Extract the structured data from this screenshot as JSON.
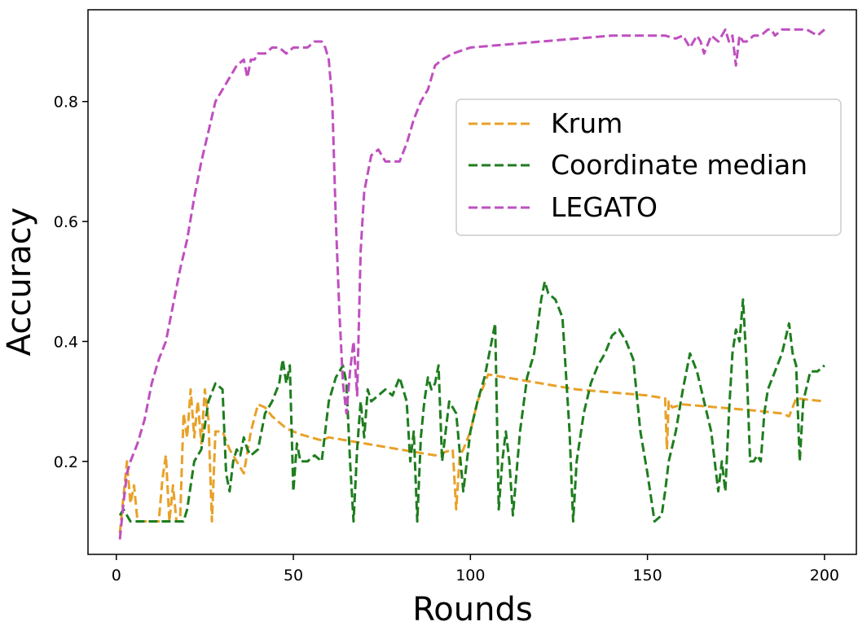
{
  "chart_data": {
    "type": "line",
    "xlabel": "Rounds",
    "ylabel": "Accuracy",
    "xlim": [
      -8,
      209
    ],
    "ylim": [
      0.045,
      0.953
    ],
    "xticks": [
      0,
      50,
      100,
      150,
      200
    ],
    "xtick_labels": [
      "0",
      "50",
      "100",
      "150",
      "200"
    ],
    "yticks": [
      0.2,
      0.4,
      0.6,
      0.8
    ],
    "ytick_labels": [
      "0.2",
      "0.4",
      "0.6",
      "0.8"
    ],
    "grid": false,
    "legend_position": "upper-right",
    "series": [
      {
        "name": "Krum",
        "color": "#e8a128",
        "style": "dashed",
        "x": [
          1,
          3,
          4,
          5,
          6,
          8,
          10,
          12,
          13,
          14,
          15,
          16,
          17,
          18,
          19,
          20,
          21,
          22,
          23,
          24,
          25,
          26,
          27,
          28,
          30,
          32,
          34,
          36,
          38,
          40,
          42,
          44,
          46,
          48,
          50,
          52,
          55,
          58,
          60,
          65,
          70,
          75,
          80,
          85,
          90,
          95,
          96,
          97,
          98,
          100,
          102,
          105,
          110,
          120,
          130,
          140,
          150,
          155,
          155.5,
          156,
          157,
          160,
          170,
          180,
          188,
          190,
          192,
          200
        ],
        "y": [
          0.08,
          0.2,
          0.13,
          0.16,
          0.1,
          0.1,
          0.1,
          0.1,
          0.17,
          0.21,
          0.1,
          0.16,
          0.1,
          0.1,
          0.28,
          0.24,
          0.32,
          0.24,
          0.3,
          0.23,
          0.32,
          0.27,
          0.1,
          0.25,
          0.25,
          0.22,
          0.2,
          0.18,
          0.25,
          0.295,
          0.29,
          0.275,
          0.265,
          0.255,
          0.25,
          0.245,
          0.24,
          0.235,
          0.24,
          0.235,
          0.23,
          0.225,
          0.22,
          0.215,
          0.21,
          0.22,
          0.12,
          0.21,
          0.22,
          0.25,
          0.3,
          0.345,
          0.34,
          0.33,
          0.32,
          0.315,
          0.31,
          0.305,
          0.22,
          0.3,
          0.29,
          0.295,
          0.29,
          0.285,
          0.28,
          0.275,
          0.305,
          0.3
        ]
      },
      {
        "name": "Coordinate median",
        "color": "#1e7d1e",
        "style": "dashed",
        "x": [
          1,
          2,
          4,
          6,
          8,
          10,
          12,
          14,
          16,
          18,
          19,
          20,
          22,
          24,
          26,
          28,
          30,
          31,
          32,
          33,
          34,
          35,
          36,
          37,
          38,
          40,
          42,
          44,
          46,
          47,
          48,
          49,
          50,
          51,
          52,
          53,
          54,
          56,
          58,
          60,
          62,
          64,
          65,
          66,
          67,
          68,
          69,
          70,
          71,
          72,
          74,
          76,
          78,
          80,
          81,
          82,
          83,
          84,
          85,
          86,
          87,
          88,
          89,
          90,
          91,
          92,
          94,
          96,
          98,
          100,
          102,
          104,
          106,
          107,
          108,
          109,
          110,
          111,
          112,
          114,
          116,
          118,
          120,
          121,
          122,
          124,
          126,
          128,
          129,
          130,
          132,
          134,
          136,
          138,
          140,
          142,
          144,
          146,
          148,
          150,
          152,
          154,
          155,
          156,
          158,
          160,
          162,
          164,
          166,
          168,
          170,
          171,
          172,
          173,
          174,
          175,
          176,
          177,
          178,
          179,
          180,
          181,
          182,
          183,
          184,
          186,
          188,
          190,
          191,
          192,
          193,
          194,
          196,
          198,
          200
        ],
        "y": [
          0.11,
          0.12,
          0.1,
          0.1,
          0.1,
          0.1,
          0.1,
          0.1,
          0.1,
          0.1,
          0.1,
          0.12,
          0.2,
          0.22,
          0.3,
          0.33,
          0.32,
          0.18,
          0.15,
          0.2,
          0.22,
          0.21,
          0.24,
          0.22,
          0.21,
          0.22,
          0.28,
          0.3,
          0.33,
          0.37,
          0.33,
          0.36,
          0.15,
          0.23,
          0.2,
          0.2,
          0.2,
          0.21,
          0.2,
          0.3,
          0.34,
          0.36,
          0.33,
          0.2,
          0.1,
          0.22,
          0.3,
          0.24,
          0.32,
          0.3,
          0.31,
          0.32,
          0.31,
          0.34,
          0.32,
          0.3,
          0.2,
          0.25,
          0.1,
          0.24,
          0.3,
          0.34,
          0.32,
          0.33,
          0.36,
          0.2,
          0.3,
          0.28,
          0.15,
          0.25,
          0.3,
          0.34,
          0.4,
          0.43,
          0.12,
          0.2,
          0.25,
          0.2,
          0.11,
          0.25,
          0.34,
          0.38,
          0.47,
          0.5,
          0.48,
          0.47,
          0.44,
          0.25,
          0.1,
          0.2,
          0.28,
          0.33,
          0.36,
          0.38,
          0.41,
          0.42,
          0.4,
          0.37,
          0.25,
          0.18,
          0.1,
          0.11,
          0.15,
          0.2,
          0.25,
          0.32,
          0.38,
          0.35,
          0.3,
          0.25,
          0.15,
          0.2,
          0.15,
          0.28,
          0.38,
          0.42,
          0.4,
          0.47,
          0.36,
          0.2,
          0.2,
          0.21,
          0.2,
          0.28,
          0.32,
          0.35,
          0.38,
          0.43,
          0.38,
          0.36,
          0.2,
          0.3,
          0.35,
          0.35,
          0.36
        ]
      },
      {
        "name": "LEGATO",
        "color": "#bf4fbf",
        "style": "dashed",
        "x": [
          1,
          2,
          3,
          4,
          6,
          8,
          10,
          12,
          14,
          16,
          18,
          20,
          22,
          24,
          26,
          28,
          30,
          32,
          34,
          36,
          37,
          38,
          39,
          40,
          42,
          44,
          46,
          48,
          50,
          52,
          54,
          56,
          58,
          59,
          60,
          61,
          62,
          63,
          64,
          65,
          66,
          67,
          68,
          69,
          70,
          72,
          74,
          75,
          76,
          78,
          80,
          82,
          84,
          86,
          88,
          90,
          92,
          95,
          100,
          110,
          120,
          130,
          140,
          145,
          150,
          155,
          158,
          160,
          161,
          162,
          164,
          165,
          166,
          168,
          170,
          171,
          172,
          173,
          174,
          175,
          176,
          177,
          178,
          180,
          182,
          184,
          185,
          186,
          188,
          190,
          192,
          195,
          198,
          200
        ],
        "y": [
          0.07,
          0.13,
          0.18,
          0.2,
          0.23,
          0.27,
          0.33,
          0.37,
          0.4,
          0.46,
          0.52,
          0.57,
          0.64,
          0.7,
          0.75,
          0.8,
          0.82,
          0.84,
          0.86,
          0.87,
          0.84,
          0.87,
          0.87,
          0.88,
          0.88,
          0.89,
          0.89,
          0.88,
          0.89,
          0.89,
          0.89,
          0.9,
          0.9,
          0.89,
          0.87,
          0.8,
          0.6,
          0.45,
          0.33,
          0.28,
          0.35,
          0.4,
          0.31,
          0.55,
          0.65,
          0.71,
          0.72,
          0.71,
          0.7,
          0.7,
          0.7,
          0.73,
          0.77,
          0.8,
          0.82,
          0.86,
          0.87,
          0.88,
          0.89,
          0.895,
          0.9,
          0.905,
          0.91,
          0.91,
          0.91,
          0.91,
          0.905,
          0.91,
          0.9,
          0.89,
          0.91,
          0.9,
          0.88,
          0.91,
          0.9,
          0.91,
          0.92,
          0.9,
          0.91,
          0.86,
          0.91,
          0.9,
          0.9,
          0.91,
          0.91,
          0.92,
          0.92,
          0.91,
          0.92,
          0.92,
          0.92,
          0.92,
          0.91,
          0.92
        ]
      }
    ]
  }
}
